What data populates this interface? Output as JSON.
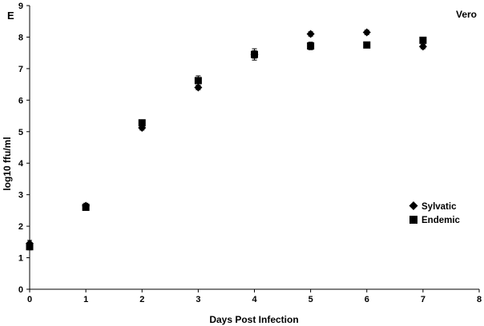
{
  "chart_data": {
    "type": "scatter",
    "panel_label": "E",
    "corner_label": "Vero",
    "xlabel": "Days Post Infection",
    "ylabel": "log10 ffu/ml",
    "xlim": [
      0,
      8
    ],
    "ylim": [
      0,
      9
    ],
    "x_ticks": [
      "0",
      "1",
      "2",
      "3",
      "4",
      "5",
      "6",
      "7",
      "8"
    ],
    "y_ticks": [
      "0",
      "1",
      "2",
      "3",
      "4",
      "5",
      "6",
      "7",
      "8",
      "9"
    ],
    "grid": false,
    "legend_position": "right",
    "x": [
      0,
      1,
      2,
      3,
      4,
      5,
      6,
      7
    ],
    "series": [
      {
        "name": "Sylvatic",
        "marker": "diamond",
        "color": "#000000",
        "values": [
          1.45,
          2.65,
          5.12,
          6.4,
          7.45,
          8.1,
          8.15,
          7.7
        ],
        "errors": [
          0.1,
          0.08,
          0.07,
          0.07,
          0.12,
          0.07,
          0.07,
          0.07
        ]
      },
      {
        "name": "Endemic",
        "marker": "square",
        "color": "#000000",
        "values": [
          1.35,
          2.6,
          5.28,
          6.62,
          7.45,
          7.72,
          7.75,
          7.9
        ],
        "errors": [
          0.1,
          0.08,
          0.07,
          0.15,
          0.18,
          0.12,
          0.05,
          0.05
        ]
      }
    ]
  }
}
